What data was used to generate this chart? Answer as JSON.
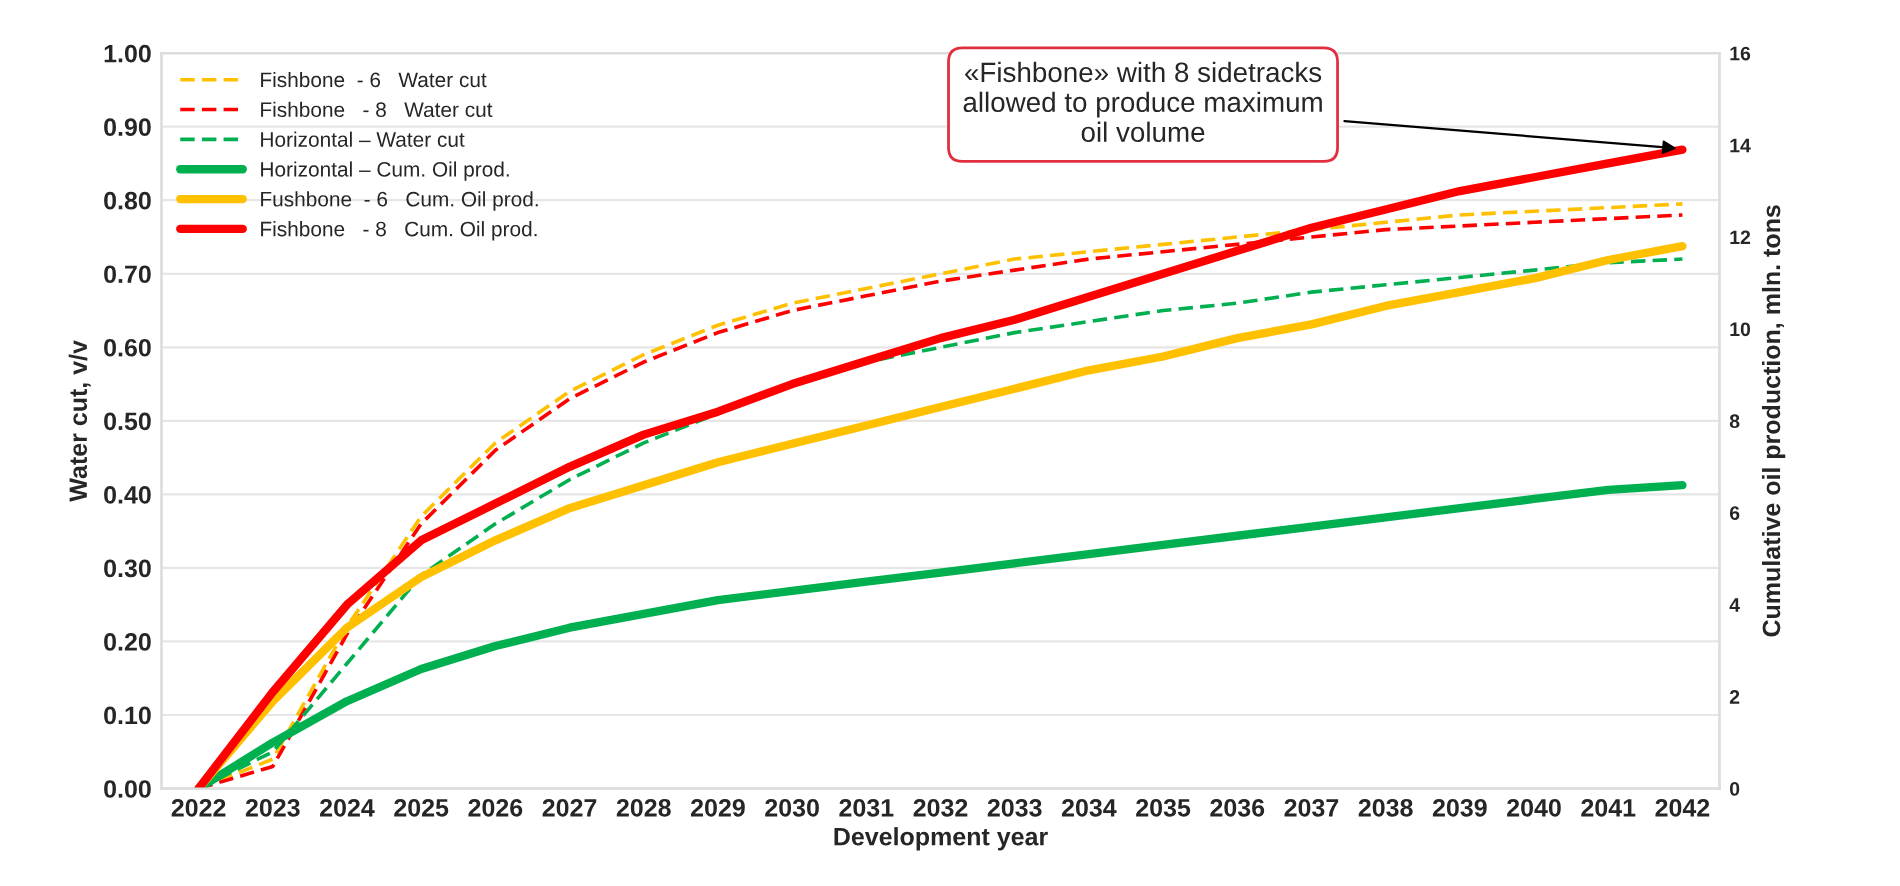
{
  "chart_data": {
    "type": "line",
    "xlabel": "Development year",
    "ylabel": "Water cut, v/v",
    "y2label": "Cumulative oil production, mln. tons",
    "categories": [
      "2022",
      "2023",
      "2024",
      "2025",
      "2026",
      "2027",
      "2028",
      "2029",
      "2030",
      "2031",
      "2032",
      "2033",
      "2034",
      "2035",
      "2036",
      "2037",
      "2038",
      "2039",
      "2040",
      "2041",
      "2042"
    ],
    "series": [
      {
        "name": "Fishbone  - 6   Water cut",
        "color": "#ffc000",
        "line_style": "dashed",
        "values": [
          0,
          0.04,
          0.22,
          0.37,
          0.47,
          0.54,
          0.59,
          0.63,
          0.66,
          0.68,
          0.7,
          0.72,
          0.73,
          0.74,
          0.75,
          0.76,
          0.77,
          0.78,
          0.785,
          0.79,
          0.795
        ]
      },
      {
        "name": "Fishbone   - 8   Water cut",
        "color": "#ff0000",
        "line_style": "dashed",
        "values": [
          0,
          0.03,
          0.21,
          0.36,
          0.46,
          0.53,
          0.58,
          0.62,
          0.65,
          0.67,
          0.69,
          0.705,
          0.72,
          0.73,
          0.74,
          0.75,
          0.76,
          0.765,
          0.77,
          0.775,
          0.78
        ]
      },
      {
        "name": "Horizontal – Water cut",
        "color": "#00b050",
        "line_style": "dashed",
        "values": [
          0,
          0.05,
          0.17,
          0.29,
          0.36,
          0.42,
          0.47,
          0.51,
          0.55,
          0.58,
          0.6,
          0.62,
          0.635,
          0.65,
          0.66,
          0.675,
          0.685,
          0.695,
          0.705,
          0.715,
          0.72
        ]
      },
      {
        "name": "Horizontal – Cum. Oil prod.",
        "color": "#00b050",
        "line_style": "solid",
        "axis": "y2",
        "values": [
          0,
          1.0,
          1.9,
          2.6,
          3.1,
          3.5,
          3.8,
          4.1,
          4.3,
          4.5,
          4.7,
          4.9,
          5.1,
          5.3,
          5.5,
          5.7,
          5.9,
          6.1,
          6.3,
          6.5,
          6.6
        ]
      },
      {
        "name": "Fushbone  - 6   Cum. Oil prod.",
        "color": "#ffc000",
        "line_style": "solid",
        "axis": "y2",
        "values": [
          0,
          1.9,
          3.5,
          4.6,
          5.4,
          6.1,
          6.6,
          7.1,
          7.5,
          7.9,
          8.3,
          8.7,
          9.1,
          9.4,
          9.8,
          10.1,
          10.5,
          10.8,
          11.1,
          11.5,
          11.8
        ]
      },
      {
        "name": "Fishbone   - 8   Cum. Oil prod.",
        "color": "#ff0000",
        "line_style": "solid",
        "axis": "y2",
        "values": [
          0,
          2.1,
          4.0,
          5.4,
          6.2,
          7.0,
          7.7,
          8.2,
          8.8,
          9.3,
          9.8,
          10.2,
          10.7,
          11.2,
          11.7,
          12.2,
          12.6,
          13.0,
          13.3,
          13.6,
          13.9
        ]
      }
    ],
    "ylim": [
      0,
      1
    ],
    "yticks": [
      {
        "value": 0,
        "label": "0.00"
      },
      {
        "value": 0.1,
        "label": "0.10"
      },
      {
        "value": 0.2,
        "label": "0.20"
      },
      {
        "value": 0.3,
        "label": "0.30"
      },
      {
        "value": 0.4,
        "label": "0.40"
      },
      {
        "value": 0.5,
        "label": "0.50"
      },
      {
        "value": 0.6,
        "label": "0.60"
      },
      {
        "value": 0.7,
        "label": "0.70"
      },
      {
        "value": 0.8,
        "label": "0.80"
      },
      {
        "value": 0.9,
        "label": "0.90"
      },
      {
        "value": 1,
        "label": "1.00"
      }
    ],
    "y2lim": [
      0,
      16
    ],
    "y2ticks": [
      0,
      2,
      4,
      6,
      8,
      10,
      12,
      14,
      16
    ],
    "annotations": [
      {
        "text": "«Fishbone» with 8 sidetracks\nallowed to produce maximum\noil volume",
        "x": "2042",
        "y": 0.87
      }
    ],
    "grid": "y",
    "legend": "top left",
    "marker": "none"
  }
}
